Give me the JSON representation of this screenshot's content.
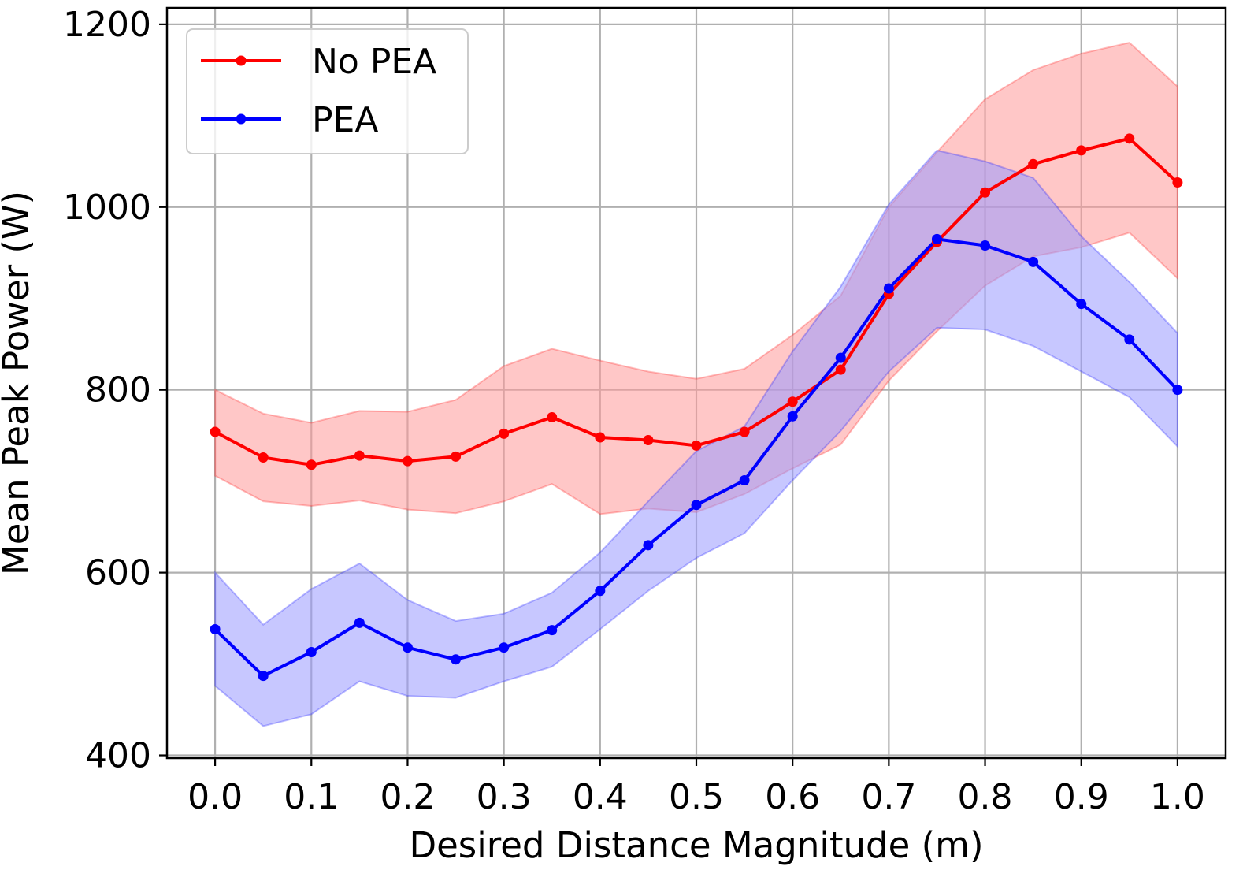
{
  "chart_data": {
    "type": "line",
    "title": "",
    "xlabel": "Desired Distance Magnitude (m)",
    "ylabel": "Mean Peak Power (W)",
    "xlim": [
      -0.05,
      1.05
    ],
    "ylim": [
      397,
      1218
    ],
    "xticks": [
      0.0,
      0.1,
      0.2,
      0.3,
      0.4,
      0.5,
      0.6,
      0.7,
      0.8,
      0.9,
      1.0
    ],
    "xtick_labels": [
      "0.0",
      "0.1",
      "0.2",
      "0.3",
      "0.4",
      "0.5",
      "0.6",
      "0.7",
      "0.8",
      "0.9",
      "1.0"
    ],
    "yticks": [
      400,
      600,
      800,
      1000,
      1200
    ],
    "ytick_labels": [
      "400",
      "600",
      "800",
      "1000",
      "1200"
    ],
    "grid": true,
    "legend_position": "top-left",
    "x": [
      0.0,
      0.05,
      0.1,
      0.15,
      0.2,
      0.25,
      0.3,
      0.35,
      0.4,
      0.45,
      0.5,
      0.55,
      0.6,
      0.65,
      0.7,
      0.75,
      0.8,
      0.85,
      0.9,
      0.95,
      1.0
    ],
    "series": [
      {
        "name": "No PEA",
        "color": "#ff0000",
        "fill_color": "#ff9999",
        "values": [
          754,
          726,
          718,
          728,
          722,
          727,
          752,
          770,
          748,
          745,
          739,
          754,
          787,
          822,
          905,
          962,
          1016,
          1047,
          1062,
          1075,
          1027
        ],
        "upper": [
          800,
          774,
          764,
          777,
          776,
          789,
          826,
          845,
          832,
          820,
          812,
          823,
          860,
          903,
          1000,
          1060,
          1118,
          1150,
          1168,
          1180,
          1132
        ],
        "lower": [
          706,
          678,
          673,
          679,
          669,
          665,
          678,
          697,
          664,
          670,
          666,
          686,
          714,
          740,
          810,
          864,
          914,
          946,
          956,
          972,
          922
        ]
      },
      {
        "name": "PEA",
        "color": "#0000ff",
        "fill_color": "#9999ff",
        "values": [
          538,
          487,
          513,
          545,
          518,
          505,
          518,
          537,
          580,
          630,
          674,
          701,
          771,
          835,
          911,
          965,
          958,
          940,
          894,
          855,
          800
        ],
        "upper": [
          600,
          543,
          582,
          610,
          570,
          547,
          555,
          578,
          622,
          678,
          733,
          760,
          842,
          913,
          1003,
          1062,
          1050,
          1032,
          968,
          918,
          862
        ],
        "lower": [
          476,
          432,
          445,
          481,
          465,
          463,
          481,
          497,
          538,
          580,
          616,
          643,
          701,
          755,
          820,
          868,
          866,
          848,
          820,
          792,
          738
        ]
      }
    ]
  }
}
